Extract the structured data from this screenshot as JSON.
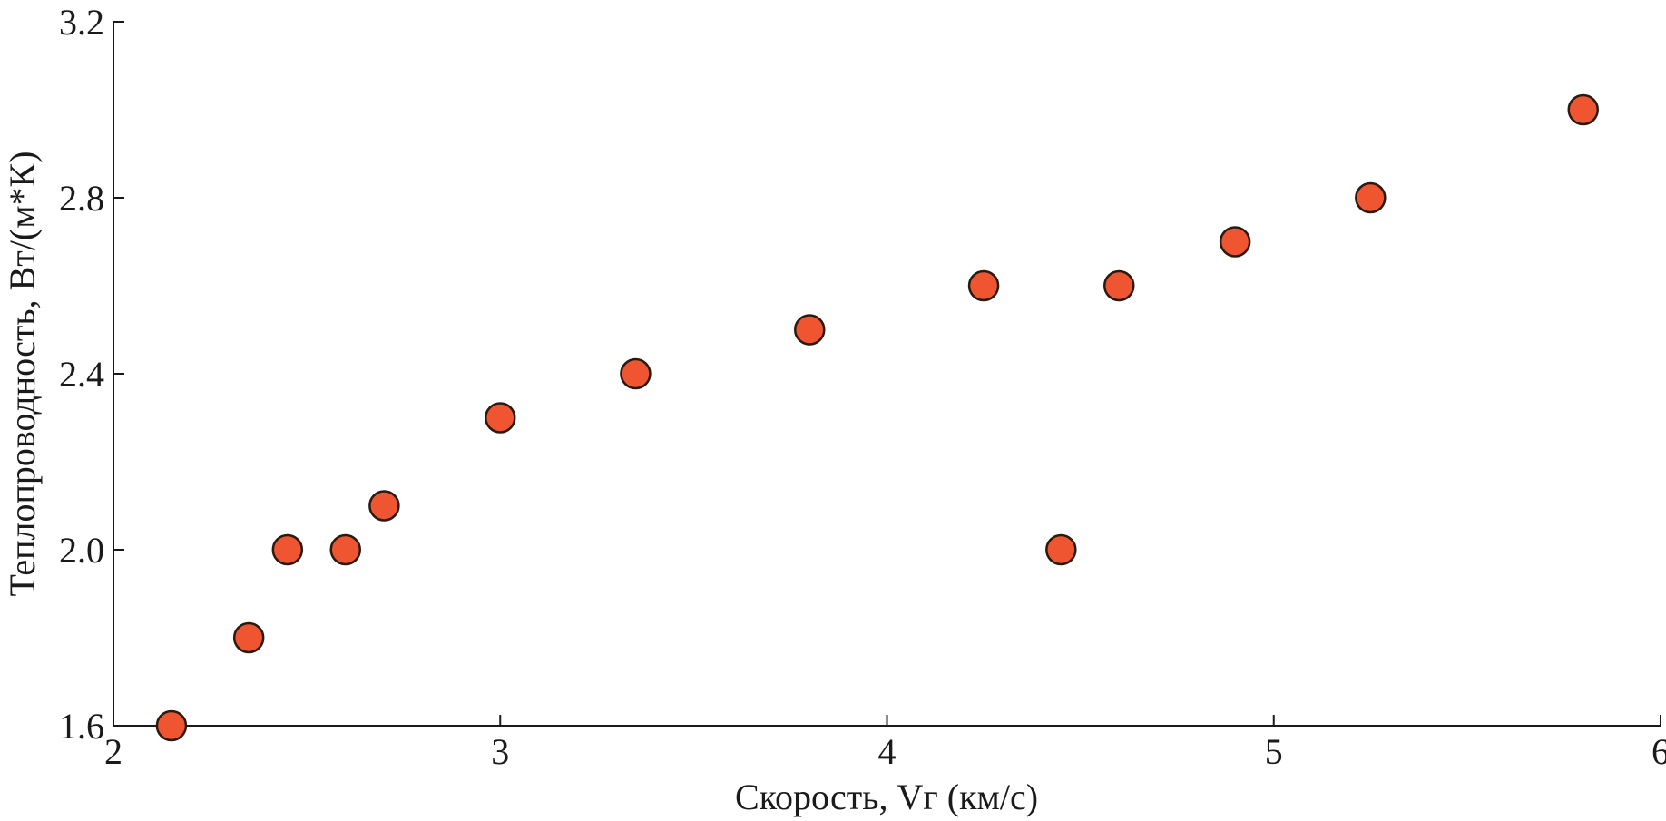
{
  "chart_data": {
    "type": "scatter",
    "title": "",
    "xlabel": "Скорость, Vг (км/с)",
    "ylabel": "Теплопроводность, Вт/(м*К)",
    "xlim": [
      2,
      6
    ],
    "ylim": [
      1.6,
      3.2
    ],
    "xticks": [
      "2",
      "3",
      "4",
      "5",
      "6"
    ],
    "xtick_values": [
      2,
      3,
      4,
      5,
      6
    ],
    "yticks": [
      "1.6",
      "2.0",
      "2.4",
      "2.8",
      "3.2"
    ],
    "ytick_values": [
      1.6,
      2.0,
      2.4,
      2.8,
      3.2
    ],
    "grid": false,
    "marker_color": "#ee5530",
    "marker_edge_color": "#2a1a10",
    "points": [
      {
        "x": 2.15,
        "y": 1.6
      },
      {
        "x": 2.35,
        "y": 1.8
      },
      {
        "x": 2.45,
        "y": 2.0
      },
      {
        "x": 2.6,
        "y": 2.0
      },
      {
        "x": 2.7,
        "y": 2.1
      },
      {
        "x": 3.0,
        "y": 2.3
      },
      {
        "x": 3.35,
        "y": 2.4
      },
      {
        "x": 3.8,
        "y": 2.5
      },
      {
        "x": 4.25,
        "y": 2.6
      },
      {
        "x": 4.45,
        "y": 2.0
      },
      {
        "x": 4.6,
        "y": 2.6
      },
      {
        "x": 4.9,
        "y": 2.7
      },
      {
        "x": 5.25,
        "y": 2.8
      },
      {
        "x": 5.8,
        "y": 3.0
      }
    ]
  }
}
